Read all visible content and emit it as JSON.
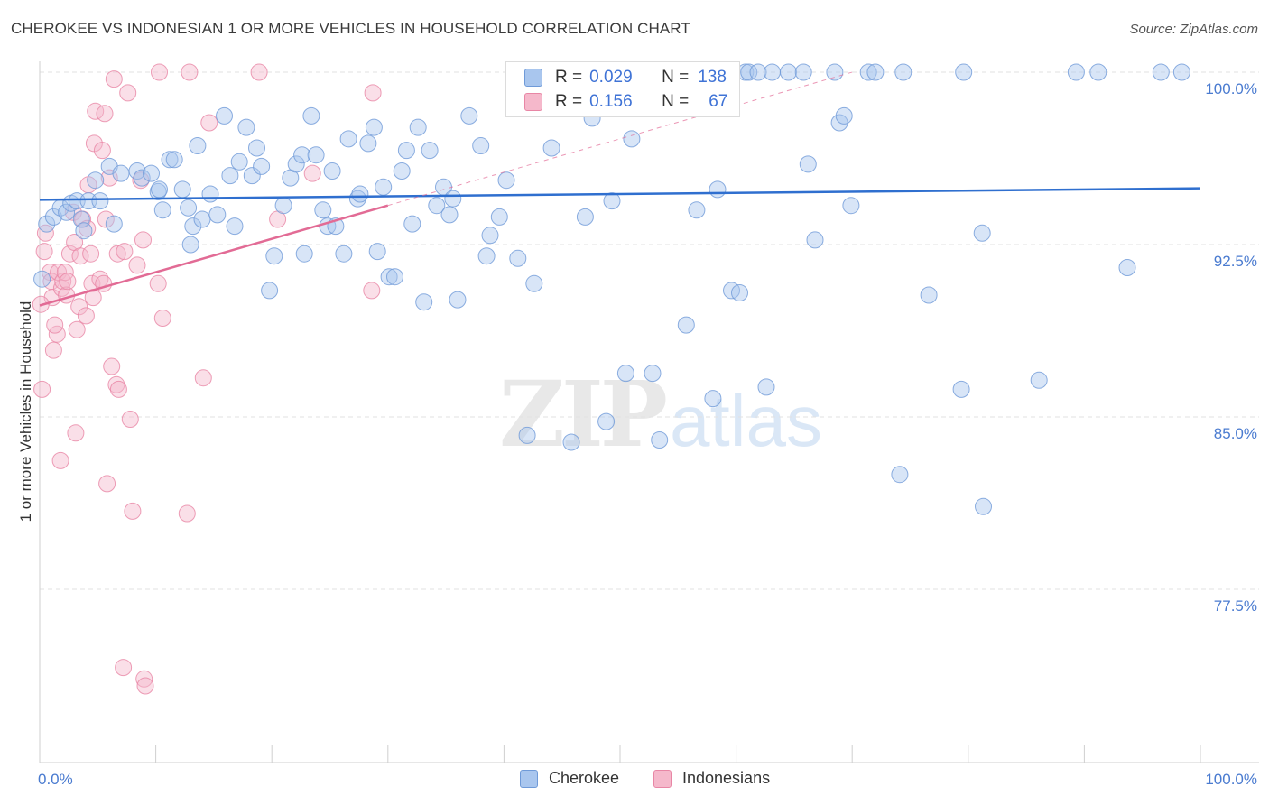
{
  "header": {
    "title": "CHEROKEE VS INDONESIAN 1 OR MORE VEHICLES IN HOUSEHOLD CORRELATION CHART",
    "source": "Source: ZipAtlas.com"
  },
  "colors": {
    "blue_fill": "#a9c6ee",
    "blue_stroke": "#6f9ad8",
    "blue_line": "#2f6fcf",
    "pink_fill": "#f5b8cb",
    "pink_stroke": "#e886a5",
    "pink_line": "#e26b95",
    "tick_text": "#4a7bd0"
  },
  "legend_top": {
    "rows": [
      {
        "r_label": "R =",
        "r_value": "0.029",
        "n_label": "N =",
        "n_value": "138"
      },
      {
        "r_label": "R =",
        "r_value": "0.156",
        "n_label": "N =",
        "n_value": "67"
      }
    ]
  },
  "legend_bottom": {
    "items": [
      "Cherokee",
      "Indonesians"
    ]
  },
  "watermark": {
    "zip": "ZIP",
    "atlas": "atlas"
  },
  "chart_data": {
    "type": "scatter",
    "title": "CHEROKEE VS INDONESIAN 1 OR MORE VEHICLES IN HOUSEHOLD CORRELATION CHART",
    "xlabel": "",
    "ylabel": "1 or more Vehicles in Household",
    "xlim": [
      0,
      100
    ],
    "ylim": [
      70.0,
      100.75
    ],
    "x_tick_labels": [
      "0.0%",
      "100.0%"
    ],
    "y_ticks": [
      77.5,
      85.0,
      92.5,
      100.0
    ],
    "y_tick_labels": [
      "77.5%",
      "85.0%",
      "92.5%",
      "100.0%"
    ],
    "grid": true,
    "legend_position": "bottom",
    "series": [
      {
        "name": "Cherokee",
        "R": 0.029,
        "N": 138,
        "trend": {
          "x": [
            0,
            100
          ],
          "y": [
            94.45,
            94.95
          ]
        },
        "points": [
          [
            0.6,
            93.4
          ],
          [
            1.2,
            93.7
          ],
          [
            1.8,
            94.1
          ],
          [
            2.3,
            93.9
          ],
          [
            2.7,
            94.3
          ],
          [
            3.2,
            94.4
          ],
          [
            3.6,
            93.6
          ],
          [
            3.8,
            93.1
          ],
          [
            4.2,
            94.4
          ],
          [
            4.8,
            95.3
          ],
          [
            5.2,
            94.4
          ],
          [
            6.0,
            95.9
          ],
          [
            6.4,
            93.4
          ],
          [
            7.0,
            95.6
          ],
          [
            8.4,
            95.7
          ],
          [
            8.8,
            95.4
          ],
          [
            9.6,
            95.6
          ],
          [
            10.2,
            94.8
          ],
          [
            10.3,
            94.9
          ],
          [
            10.6,
            94.0
          ],
          [
            11.2,
            96.2
          ],
          [
            11.6,
            96.2
          ],
          [
            12.3,
            94.9
          ],
          [
            12.8,
            94.1
          ],
          [
            13.0,
            92.5
          ],
          [
            13.2,
            93.3
          ],
          [
            13.6,
            96.8
          ],
          [
            14.0,
            93.6
          ],
          [
            14.7,
            94.7
          ],
          [
            15.3,
            93.8
          ],
          [
            15.9,
            98.1
          ],
          [
            16.4,
            95.5
          ],
          [
            16.8,
            93.3
          ],
          [
            17.2,
            96.1
          ],
          [
            17.8,
            97.6
          ],
          [
            18.3,
            95.5
          ],
          [
            18.7,
            96.7
          ],
          [
            19.1,
            95.9
          ],
          [
            19.8,
            90.5
          ],
          [
            20.2,
            92.0
          ],
          [
            21.0,
            94.2
          ],
          [
            21.6,
            95.4
          ],
          [
            22.1,
            96.0
          ],
          [
            22.6,
            96.4
          ],
          [
            22.8,
            92.1
          ],
          [
            23.4,
            98.1
          ],
          [
            23.8,
            96.4
          ],
          [
            24.4,
            94.0
          ],
          [
            24.8,
            93.3
          ],
          [
            25.2,
            95.7
          ],
          [
            25.5,
            93.3
          ],
          [
            26.2,
            92.1
          ],
          [
            26.6,
            97.1
          ],
          [
            27.4,
            94.5
          ],
          [
            27.6,
            94.7
          ],
          [
            28.3,
            96.9
          ],
          [
            28.8,
            97.6
          ],
          [
            29.1,
            92.2
          ],
          [
            29.6,
            95.0
          ],
          [
            30.1,
            91.1
          ],
          [
            30.6,
            91.1
          ],
          [
            31.2,
            95.7
          ],
          [
            31.6,
            96.6
          ],
          [
            32.1,
            93.4
          ],
          [
            32.6,
            97.6
          ],
          [
            33.1,
            90.0
          ],
          [
            33.6,
            96.6
          ],
          [
            34.2,
            94.2
          ],
          [
            34.8,
            95.0
          ],
          [
            35.3,
            93.8
          ],
          [
            35.6,
            94.5
          ],
          [
            36.0,
            90.1
          ],
          [
            37.0,
            98.1
          ],
          [
            38.0,
            96.8
          ],
          [
            38.5,
            92.0
          ],
          [
            38.8,
            92.9
          ],
          [
            39.6,
            93.7
          ],
          [
            40.2,
            95.3
          ],
          [
            41.2,
            91.9
          ],
          [
            42.0,
            84.2
          ],
          [
            42.6,
            90.8
          ],
          [
            44.1,
            96.7
          ],
          [
            44.3,
            100.0
          ],
          [
            45.8,
            83.9
          ],
          [
            47.0,
            93.7
          ],
          [
            47.2,
            100.0
          ],
          [
            47.6,
            98.0
          ],
          [
            48.8,
            84.8
          ],
          [
            49.3,
            94.4
          ],
          [
            50.5,
            86.9
          ],
          [
            51.0,
            97.1
          ],
          [
            51.8,
            100.0
          ],
          [
            52.8,
            86.9
          ],
          [
            53.4,
            84.0
          ],
          [
            53.6,
            100.0
          ],
          [
            55.2,
            100.0
          ],
          [
            55.7,
            89.0
          ],
          [
            56.6,
            94.0
          ],
          [
            56.7,
            100.0
          ],
          [
            58.0,
            85.8
          ],
          [
            58.4,
            94.9
          ],
          [
            59.6,
            90.5
          ],
          [
            60.3,
            90.4
          ],
          [
            60.8,
            100.0
          ],
          [
            61.1,
            100.0
          ],
          [
            61.9,
            100.0
          ],
          [
            62.6,
            86.3
          ],
          [
            63.1,
            100.0
          ],
          [
            64.5,
            100.0
          ],
          [
            65.8,
            100.0
          ],
          [
            66.2,
            96.0
          ],
          [
            66.8,
            92.7
          ],
          [
            68.5,
            100.0
          ],
          [
            68.9,
            97.8
          ],
          [
            69.3,
            98.1
          ],
          [
            69.9,
            94.2
          ],
          [
            71.4,
            100.0
          ],
          [
            72.0,
            100.0
          ],
          [
            74.1,
            82.5
          ],
          [
            74.4,
            100.0
          ],
          [
            76.6,
            90.3
          ],
          [
            79.4,
            86.2
          ],
          [
            79.6,
            100.0
          ],
          [
            81.2,
            93.0
          ],
          [
            81.3,
            81.1
          ],
          [
            86.1,
            86.6
          ],
          [
            89.3,
            100.0
          ],
          [
            91.2,
            100.0
          ],
          [
            93.7,
            91.5
          ],
          [
            96.6,
            100.0
          ],
          [
            98.4,
            100.0
          ],
          [
            0.2,
            91.0
          ]
        ]
      },
      {
        "name": "Indonesians",
        "R": 0.156,
        "N": 67,
        "trend": {
          "x": [
            0,
            30
          ],
          "y": [
            89.85,
            94.2
          ]
        },
        "points": [
          [
            0.2,
            86.2
          ],
          [
            0.4,
            92.2
          ],
          [
            0.5,
            93.0
          ],
          [
            0.9,
            91.3
          ],
          [
            1.0,
            90.9
          ],
          [
            1.1,
            90.2
          ],
          [
            1.2,
            87.9
          ],
          [
            1.5,
            88.6
          ],
          [
            1.6,
            91.3
          ],
          [
            1.8,
            83.1
          ],
          [
            1.9,
            90.6
          ],
          [
            2.0,
            90.9
          ],
          [
            2.2,
            91.3
          ],
          [
            2.3,
            90.3
          ],
          [
            2.4,
            90.9
          ],
          [
            2.6,
            92.1
          ],
          [
            2.9,
            93.9
          ],
          [
            3.0,
            92.6
          ],
          [
            3.1,
            84.3
          ],
          [
            3.2,
            88.8
          ],
          [
            3.4,
            89.8
          ],
          [
            3.5,
            92.0
          ],
          [
            3.7,
            93.6
          ],
          [
            4.0,
            89.4
          ],
          [
            4.1,
            93.2
          ],
          [
            4.2,
            95.1
          ],
          [
            4.4,
            92.1
          ],
          [
            4.5,
            90.8
          ],
          [
            4.6,
            90.2
          ],
          [
            4.7,
            96.9
          ],
          [
            4.8,
            98.3
          ],
          [
            5.2,
            91.0
          ],
          [
            5.4,
            96.6
          ],
          [
            5.5,
            90.8
          ],
          [
            5.6,
            98.2
          ],
          [
            5.7,
            93.6
          ],
          [
            5.8,
            82.1
          ],
          [
            6.0,
            95.4
          ],
          [
            6.2,
            87.2
          ],
          [
            6.4,
            99.7
          ],
          [
            6.6,
            86.4
          ],
          [
            6.7,
            92.1
          ],
          [
            6.8,
            86.2
          ],
          [
            7.2,
            74.1
          ],
          [
            7.3,
            92.2
          ],
          [
            7.6,
            99.1
          ],
          [
            7.8,
            84.9
          ],
          [
            8.0,
            80.9
          ],
          [
            8.4,
            91.6
          ],
          [
            8.7,
            95.3
          ],
          [
            8.9,
            92.7
          ],
          [
            9.0,
            73.6
          ],
          [
            9.1,
            73.3
          ],
          [
            10.2,
            90.8
          ],
          [
            10.3,
            100.0
          ],
          [
            10.6,
            89.3
          ],
          [
            12.7,
            80.8
          ],
          [
            12.9,
            100.0
          ],
          [
            14.1,
            86.7
          ],
          [
            14.6,
            97.8
          ],
          [
            18.9,
            100.0
          ],
          [
            20.5,
            93.6
          ],
          [
            23.5,
            95.6
          ],
          [
            28.6,
            90.5
          ],
          [
            28.7,
            99.1
          ],
          [
            0.1,
            89.9
          ],
          [
            1.3,
            89.0
          ]
        ]
      }
    ]
  }
}
